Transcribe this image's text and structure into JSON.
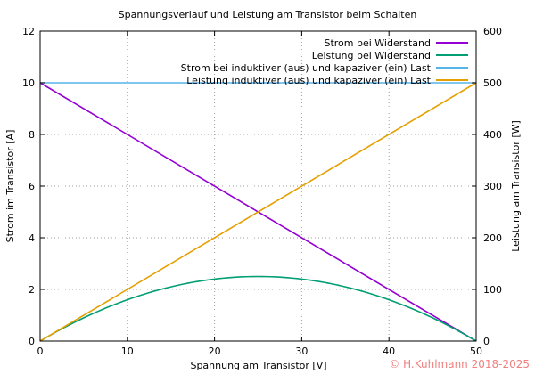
{
  "chart_data": {
    "type": "line",
    "title": "Spannungsverlauf und Leistung am Transistor beim Schalten",
    "xlabel": "Spannung am Transistor [V]",
    "ylabel": "Strom im Transistor [A]",
    "y2label": "Leistung am Transistor [W]",
    "xlim": [
      0,
      50
    ],
    "ylim": [
      0,
      12
    ],
    "y2lim": [
      0,
      600
    ],
    "xticks": [
      "0",
      "10",
      "20",
      "30",
      "40",
      "50"
    ],
    "yticks": [
      "0",
      "2",
      "4",
      "6",
      "8",
      "10",
      "12"
    ],
    "y2ticks": [
      "0",
      "100",
      "200",
      "300",
      "400",
      "500",
      "600"
    ],
    "grid": true,
    "legend_position": "top-right",
    "series": [
      {
        "name": "Strom bei Widerstand",
        "axis": "left",
        "color": "#9400d3",
        "x": [
          0,
          50
        ],
        "y": [
          10,
          0
        ]
      },
      {
        "name": "Leistung bei Widerstand",
        "axis": "right",
        "color": "#009e73",
        "x": [
          0,
          5,
          10,
          15,
          20,
          25,
          30,
          35,
          40,
          45,
          50
        ],
        "y": [
          0,
          45,
          80,
          105,
          120,
          125,
          120,
          105,
          80,
          45,
          0
        ]
      },
      {
        "name": "Strom bei induktiver (aus) und kapaziver (ein) Last",
        "axis": "left",
        "color": "#56b4e9",
        "x": [
          0,
          50
        ],
        "y": [
          10,
          10
        ]
      },
      {
        "name": "Leistung induktiver (aus) und kapaziver (ein) Last",
        "axis": "right",
        "color": "#e69f00",
        "x": [
          0,
          50
        ],
        "y": [
          0,
          500
        ]
      }
    ]
  },
  "credit": "© H.Kuhlmann 2018-2025"
}
